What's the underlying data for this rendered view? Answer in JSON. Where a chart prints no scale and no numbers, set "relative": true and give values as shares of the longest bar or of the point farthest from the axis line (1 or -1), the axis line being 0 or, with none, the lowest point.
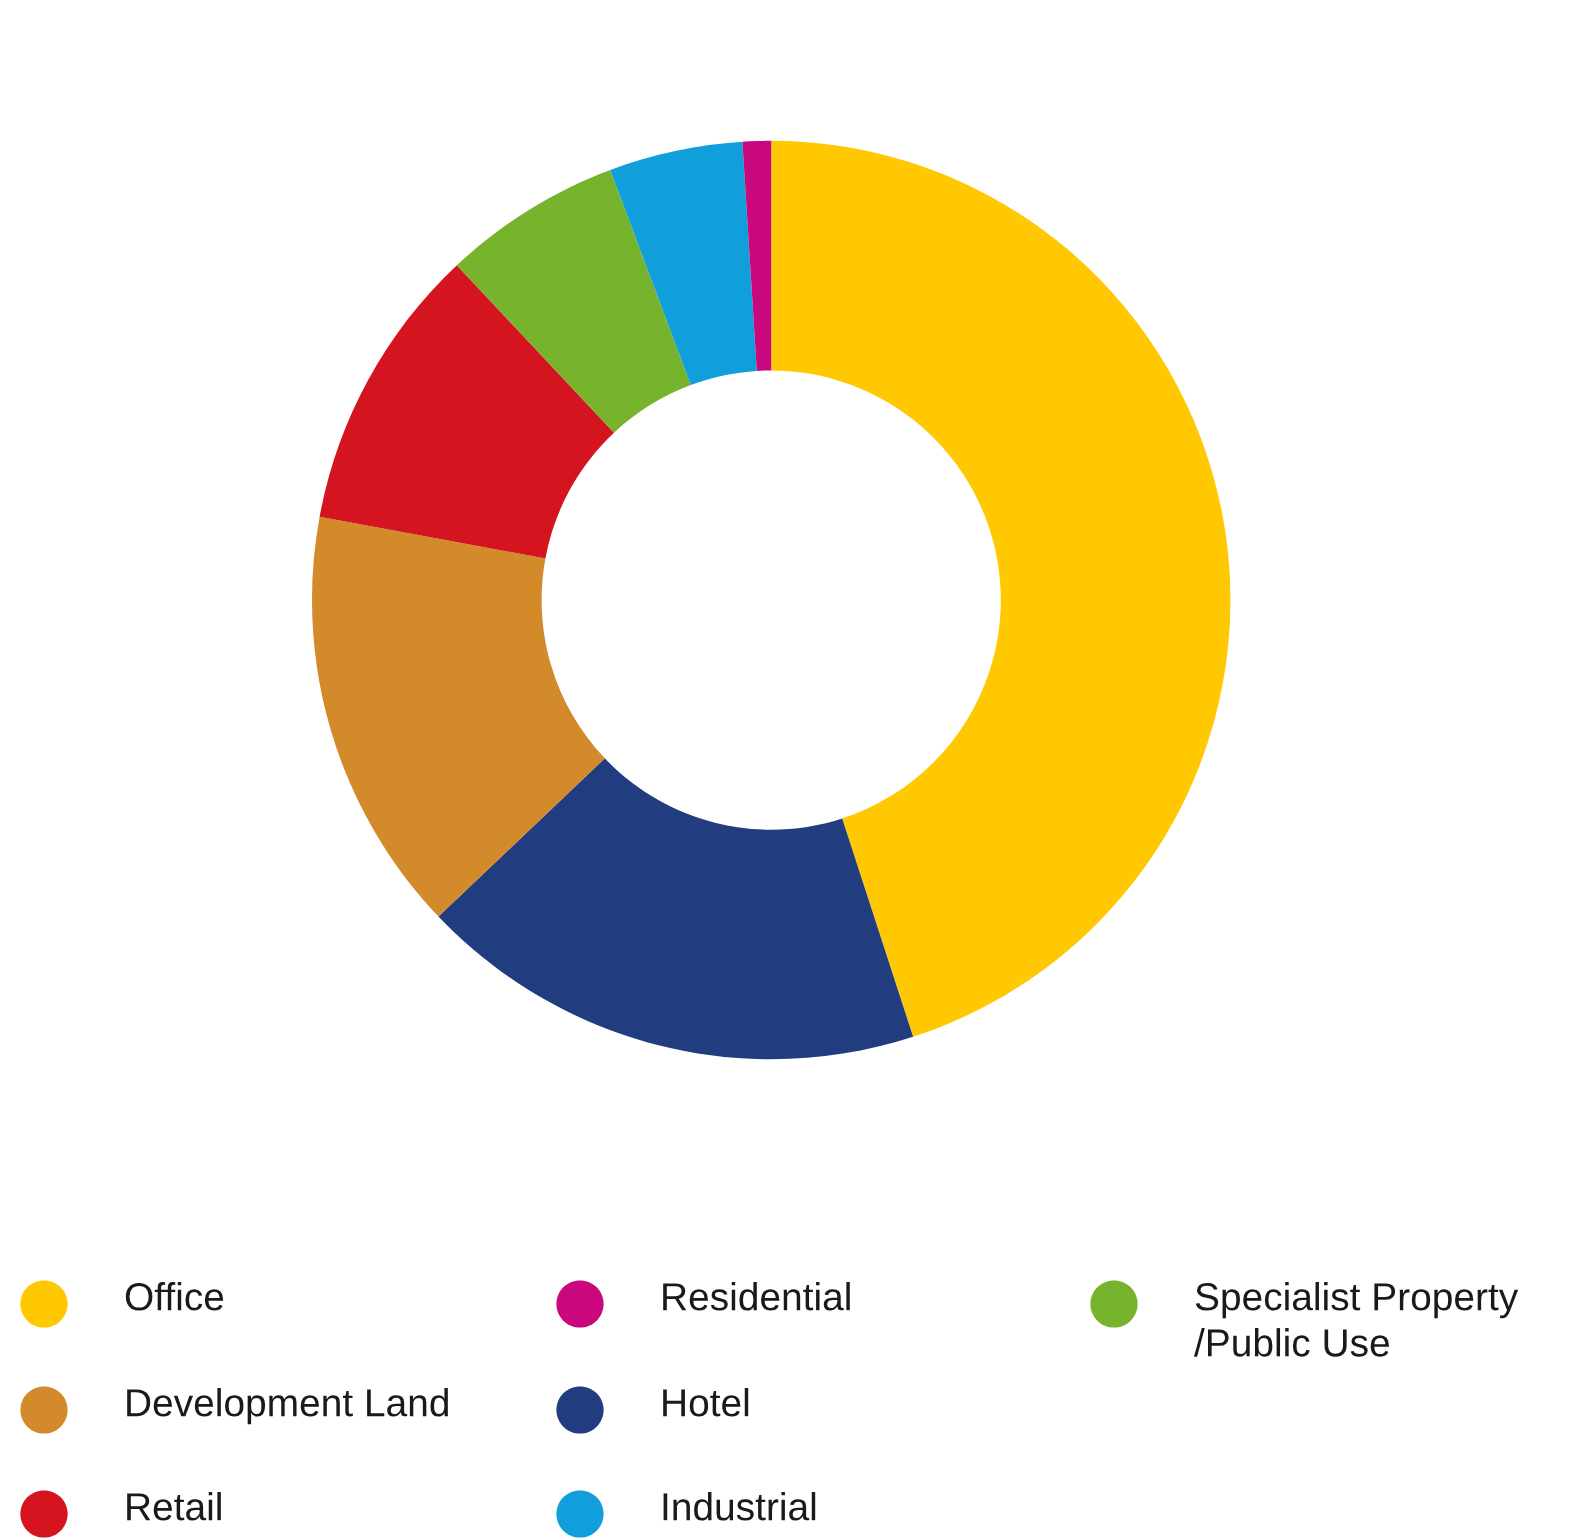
{
  "chart_data": {
    "type": "donut",
    "relative": true,
    "categories": [
      "Office",
      "Hotel",
      "Development Land",
      "Retail",
      "Specialist Property\n/Public Use",
      "Industrial",
      "Residential"
    ],
    "values": [
      45,
      17.9,
      15,
      10.1,
      6.3,
      4.7,
      1
    ],
    "colors": [
      "#ffc800",
      "#213d80",
      "#d38a2b",
      "#d4141f",
      "#78b32e",
      "#109fdb",
      "#c8087c"
    ],
    "legend": "bottom"
  }
}
